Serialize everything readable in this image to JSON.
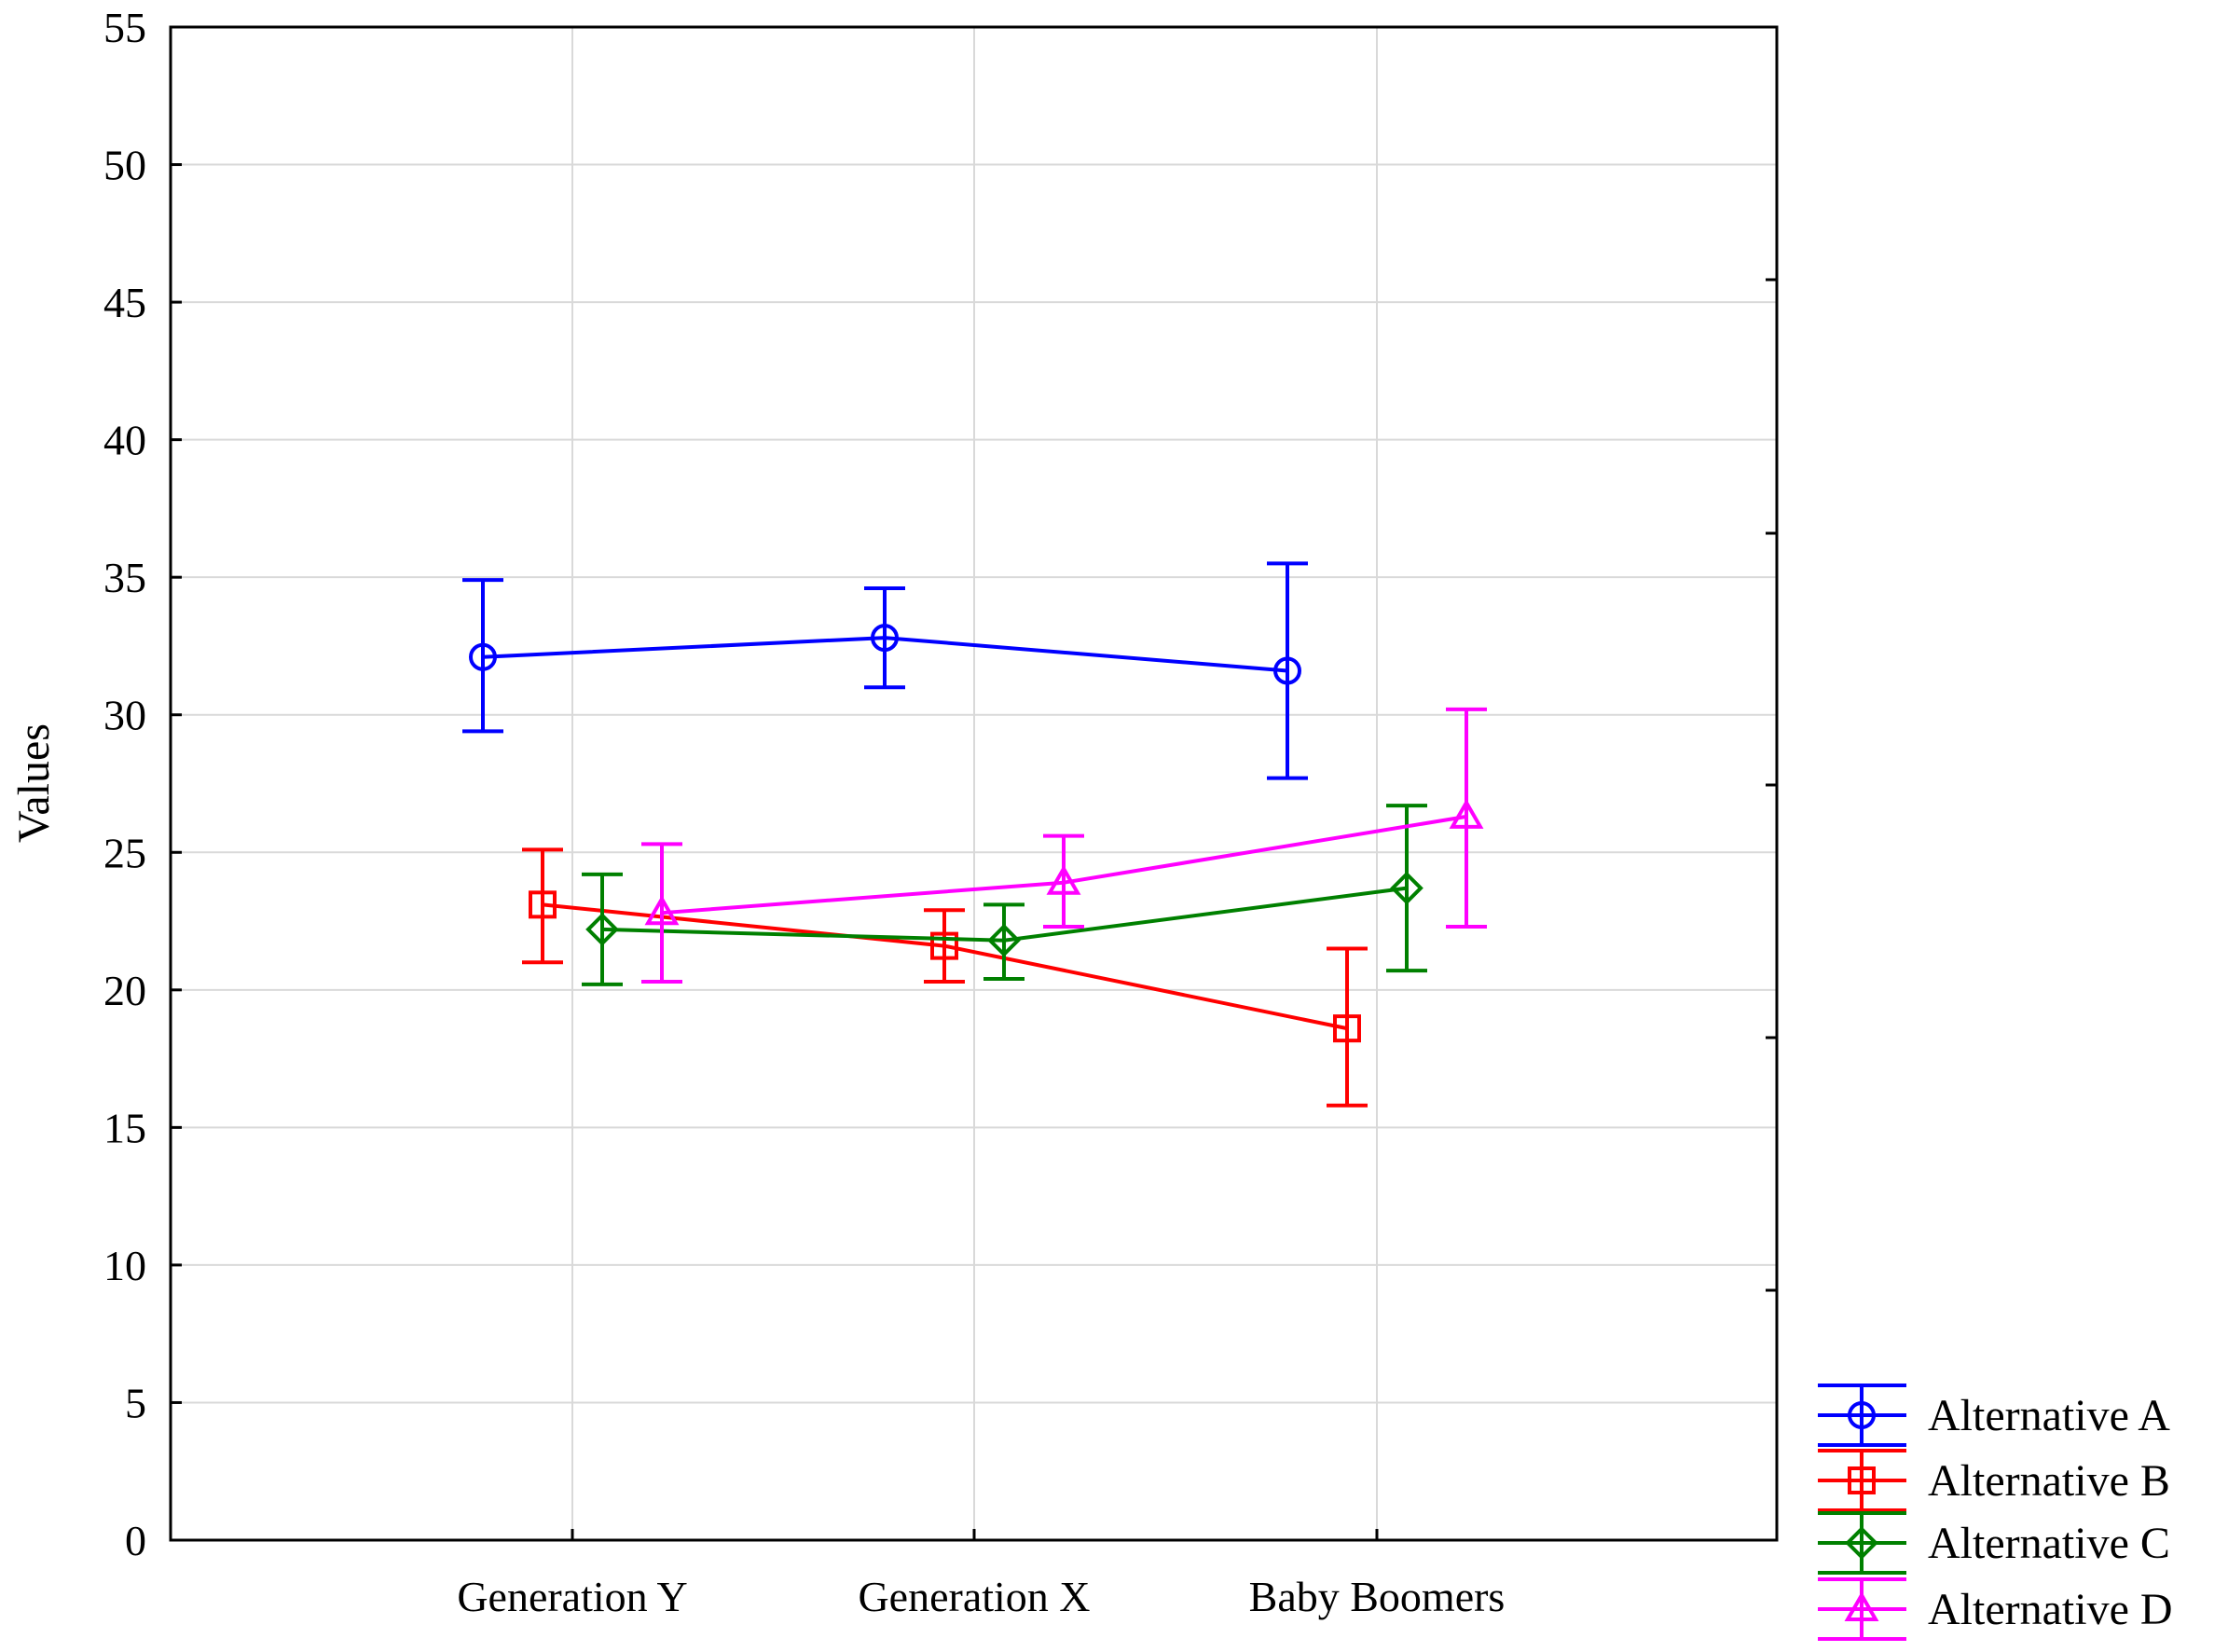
{
  "chart_data": {
    "type": "line",
    "title": "",
    "xlabel": "",
    "ylabel": "Values",
    "ylim": [
      0,
      55
    ],
    "yticks": [
      0,
      5,
      10,
      15,
      20,
      25,
      30,
      35,
      40,
      45,
      50,
      55
    ],
    "ytick_labels": [
      "0",
      "5",
      "10",
      "15",
      "20",
      "25",
      "30",
      "35",
      "40",
      "45",
      "50",
      "55"
    ],
    "categories": [
      "Generation Y",
      "Generation X",
      "Baby Boomers"
    ],
    "grid": true,
    "legend_position": "bottom-right-outside",
    "series": [
      {
        "name": "Alternative A",
        "color": "#0000ff",
        "marker": "circle",
        "values": [
          32.1,
          32.8,
          31.6
        ],
        "err_low": [
          29.4,
          31.0,
          27.7
        ],
        "err_high": [
          34.9,
          34.6,
          35.5
        ]
      },
      {
        "name": "Alternative B",
        "color": "#ff0000",
        "marker": "square",
        "values": [
          23.1,
          21.6,
          18.6
        ],
        "err_low": [
          21.0,
          20.3,
          15.8
        ],
        "err_high": [
          25.1,
          22.9,
          21.5
        ]
      },
      {
        "name": "Alternative C",
        "color": "#008000",
        "marker": "diamond",
        "values": [
          22.2,
          21.8,
          23.7
        ],
        "err_low": [
          20.2,
          20.4,
          20.7
        ],
        "err_high": [
          24.2,
          23.1,
          26.7
        ]
      },
      {
        "name": "Alternative D",
        "color": "#ff00ff",
        "marker": "triangle",
        "values": [
          22.8,
          23.9,
          26.3
        ],
        "err_low": [
          20.3,
          22.3,
          22.3
        ],
        "err_high": [
          25.3,
          25.6,
          30.2
        ]
      }
    ]
  }
}
